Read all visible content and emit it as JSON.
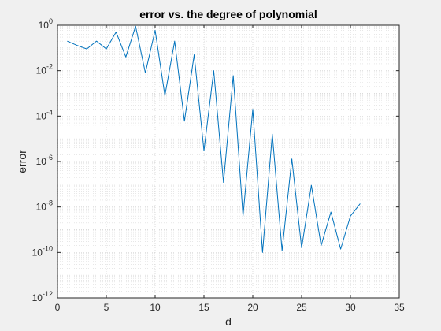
{
  "chart_data": {
    "type": "line",
    "title": "error vs. the degree of polynomial",
    "xlabel": "d",
    "ylabel": "error",
    "xlim": [
      0,
      35
    ],
    "ylim": [
      1e-12,
      1
    ],
    "yscale": "log",
    "grid": "on (major and minor)",
    "x_ticks": [
      "0",
      "5",
      "10",
      "15",
      "20",
      "25",
      "30",
      "35"
    ],
    "y_ticks": [
      {
        "base": "10",
        "exp": "-12"
      },
      {
        "base": "10",
        "exp": "-10"
      },
      {
        "base": "10",
        "exp": "-8"
      },
      {
        "base": "10",
        "exp": "-6"
      },
      {
        "base": "10",
        "exp": "-4"
      },
      {
        "base": "10",
        "exp": "-2"
      },
      {
        "base": "10",
        "exp": "0"
      }
    ],
    "line_color": "#0072bd",
    "series": [
      {
        "x": [
          1,
          2,
          3,
          4,
          5,
          6,
          7,
          8,
          9,
          10,
          11,
          12,
          13,
          14,
          15,
          16,
          17,
          18,
          19,
          20,
          21,
          22,
          23,
          24,
          25,
          26,
          27,
          28,
          29,
          30,
          31
        ],
        "y": [
          0.2,
          0.13,
          0.09,
          0.2,
          0.09,
          0.5,
          0.04,
          0.9,
          0.008,
          0.6,
          0.0008,
          0.2,
          6e-05,
          0.05,
          3e-06,
          0.01,
          1.2e-07,
          0.006,
          4e-09,
          0.0002,
          1e-10,
          1.6e-05,
          1.2e-10,
          1.3e-06,
          1.6e-10,
          9e-08,
          2e-10,
          6e-09,
          1.4e-10,
          4e-09,
          1.4e-08
        ]
      }
    ]
  }
}
